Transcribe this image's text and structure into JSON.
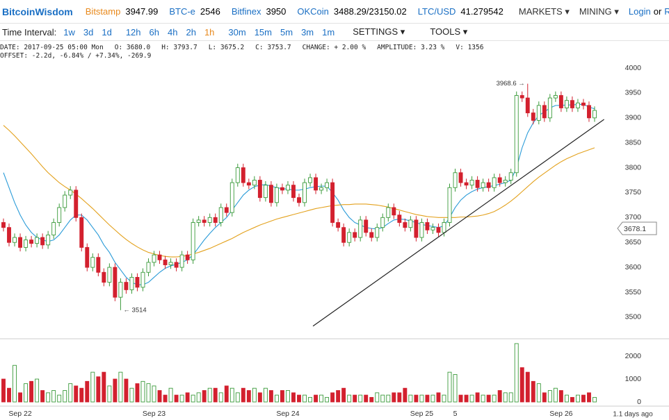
{
  "nav": {
    "brand": "BitcoinWisdom",
    "tickers": [
      {
        "name": "Bitstamp",
        "price": "3947.99"
      },
      {
        "name": "BTC-e",
        "price": "2546"
      },
      {
        "name": "Bitfinex",
        "price": "3950"
      },
      {
        "name": "OKCoin",
        "price": "3488.29/23150.02"
      },
      {
        "name": "LTC/USD",
        "price": "41.279542"
      }
    ],
    "menus": [
      "MARKETS ▾",
      "MINING ▾"
    ],
    "login": "Login",
    "or": "or",
    "register": "R"
  },
  "toolbar": {
    "label": "Time Interval:",
    "intervals": [
      "1w",
      "3d",
      "1d",
      "12h",
      "6h",
      "4h",
      "2h",
      "1h",
      "30m",
      "15m",
      "5m",
      "3m",
      "1m"
    ],
    "selected": "1h",
    "settings": "SETTINGS ▾",
    "tools": "TOOLS ▾"
  },
  "info": {
    "line1": [
      "DATE: 2017-09-25 05:00 Mon",
      "O: 3680.0",
      "H: 3793.7",
      "L: 3675.2",
      "C: 3753.7",
      "CHANGE: + 2.00 %",
      "AMPLITUDE: 3.23 %",
      "V: 1356"
    ],
    "line2": "OFFSET: -2.2d, -6.84% / +7.34%, -269.9"
  },
  "chart_data": [
    {
      "type": "candlestick",
      "up_color": "#3a9a3a",
      "down_color": "#d3202e",
      "categories": [
        null,
        null,
        null,
        "Sep 22",
        null,
        null,
        null,
        null,
        null,
        null,
        null,
        null,
        null,
        null,
        null,
        null,
        null,
        null,
        null,
        null,
        null,
        null,
        null,
        null,
        null,
        null,
        null,
        "Sep 23",
        null,
        null,
        null,
        null,
        null,
        null,
        null,
        null,
        null,
        null,
        null,
        null,
        null,
        null,
        null,
        null,
        null,
        null,
        null,
        null,
        null,
        null,
        null,
        "Sep 24",
        null,
        null,
        null,
        null,
        null,
        null,
        null,
        null,
        null,
        null,
        null,
        null,
        null,
        null,
        null,
        null,
        null,
        null,
        null,
        null,
        null,
        null,
        null,
        "Sep 25",
        null,
        null,
        null,
        null,
        null,
        "5",
        null,
        null,
        null,
        null,
        null,
        null,
        null,
        null,
        null,
        null,
        null,
        null,
        null,
        null,
        null,
        null,
        null,
        null,
        "Sep 26",
        null,
        null,
        null,
        null,
        null,
        null
      ],
      "open": [
        3690,
        3680,
        3650,
        3660,
        3640,
        3655,
        3648,
        3660,
        3645,
        3665,
        3690,
        3720,
        3745,
        3755,
        3700,
        3640,
        3600,
        3620,
        3590,
        3570,
        3600,
        3540,
        3570,
        3555,
        3580,
        3560,
        3590,
        3610,
        3625,
        3615,
        3605,
        3610,
        3600,
        3625,
        3615,
        3690,
        3695,
        3690,
        3700,
        3690,
        3720,
        3710,
        3770,
        3800,
        3770,
        3765,
        3775,
        3740,
        3765,
        3730,
        3760,
        3755,
        3765,
        3740,
        3730,
        3770,
        3780,
        3755,
        3760,
        3770,
        3690,
        3680,
        3650,
        3670,
        3660,
        3695,
        3670,
        3660,
        3680,
        3700,
        3720,
        3705,
        3690,
        3680,
        3695,
        3660,
        3690,
        3675,
        3680,
        3670,
        3690,
        3760,
        3790,
        3770,
        3765,
        3775,
        3760,
        3770,
        3760,
        3780,
        3770,
        3775,
        3790,
        3945,
        3940,
        3910,
        3895,
        3925,
        3900,
        3940,
        3945,
        3920,
        3935,
        3920,
        3930,
        3925,
        3900
      ],
      "high": [
        3698,
        3688,
        3668,
        3668,
        3663,
        3663,
        3668,
        3668,
        3673,
        3698,
        3728,
        3753,
        3763,
        3763,
        3708,
        3648,
        3628,
        3628,
        3598,
        3608,
        3608,
        3578,
        3578,
        3588,
        3588,
        3598,
        3618,
        3633,
        3633,
        3623,
        3618,
        3618,
        3633,
        3633,
        3698,
        3703,
        3703,
        3708,
        3708,
        3728,
        3728,
        3778,
        3808,
        3808,
        3778,
        3783,
        3783,
        3773,
        3773,
        3768,
        3768,
        3773,
        3773,
        3748,
        3778,
        3788,
        3788,
        3768,
        3778,
        3778,
        3698,
        3688,
        3678,
        3678,
        3703,
        3703,
        3678,
        3688,
        3708,
        3728,
        3728,
        3713,
        3698,
        3703,
        3703,
        3698,
        3698,
        3688,
        3688,
        3698,
        3768,
        3798,
        3798,
        3778,
        3783,
        3783,
        3778,
        3778,
        3788,
        3788,
        3783,
        3798,
        3953,
        3953,
        3968.6,
        3918,
        3933,
        3933,
        3948,
        3953,
        3953,
        3943,
        3943,
        3938,
        3938,
        3933,
        3923
      ],
      "low": [
        3672,
        3642,
        3642,
        3632,
        3632,
        3640,
        3640,
        3637,
        3637,
        3657,
        3682,
        3712,
        3737,
        3692,
        3632,
        3592,
        3592,
        3582,
        3562,
        3562,
        3532,
        3514,
        3547,
        3547,
        3552,
        3552,
        3582,
        3602,
        3607,
        3597,
        3597,
        3592,
        3592,
        3607,
        3607,
        3682,
        3682,
        3682,
        3682,
        3682,
        3702,
        3702,
        3762,
        3762,
        3757,
        3757,
        3732,
        3732,
        3722,
        3722,
        3747,
        3747,
        3732,
        3722,
        3722,
        3762,
        3747,
        3747,
        3752,
        3682,
        3672,
        3642,
        3642,
        3652,
        3652,
        3662,
        3652,
        3652,
        3672,
        3692,
        3697,
        3682,
        3672,
        3672,
        3652,
        3652,
        3667,
        3667,
        3662,
        3662,
        3682,
        3752,
        3762,
        3757,
        3757,
        3752,
        3752,
        3752,
        3752,
        3762,
        3762,
        3767,
        3782,
        3932,
        3902,
        3887,
        3887,
        3892,
        3892,
        3932,
        3912,
        3912,
        3912,
        3912,
        3917,
        3892,
        3892
      ],
      "close": [
        3680,
        3650,
        3660,
        3640,
        3655,
        3648,
        3660,
        3645,
        3665,
        3690,
        3720,
        3745,
        3755,
        3700,
        3640,
        3600,
        3620,
        3590,
        3570,
        3600,
        3540,
        3570,
        3555,
        3580,
        3560,
        3590,
        3610,
        3625,
        3615,
        3605,
        3610,
        3600,
        3625,
        3615,
        3690,
        3695,
        3690,
        3700,
        3690,
        3720,
        3710,
        3770,
        3800,
        3770,
        3765,
        3775,
        3740,
        3765,
        3730,
        3760,
        3755,
        3765,
        3740,
        3730,
        3770,
        3780,
        3755,
        3760,
        3770,
        3690,
        3680,
        3650,
        3670,
        3660,
        3695,
        3670,
        3660,
        3680,
        3700,
        3720,
        3705,
        3690,
        3680,
        3695,
        3660,
        3690,
        3675,
        3680,
        3670,
        3690,
        3760,
        3790,
        3770,
        3765,
        3775,
        3760,
        3770,
        3760,
        3780,
        3770,
        3775,
        3790,
        3945,
        3940,
        3910,
        3895,
        3925,
        3900,
        3940,
        3945,
        3920,
        3935,
        3920,
        3930,
        3925,
        3900,
        3915
      ],
      "series": [
        {
          "color": "#2a9bd8",
          "values": [
            3790,
            3760,
            3730,
            3705,
            3685,
            3670,
            3660,
            3655,
            3652,
            3655,
            3665,
            3680,
            3695,
            3705,
            3705,
            3695,
            3680,
            3665,
            3645,
            3630,
            3610,
            3595,
            3580,
            3570,
            3565,
            3565,
            3570,
            3580,
            3590,
            3598,
            3603,
            3606,
            3610,
            3615,
            3625,
            3640,
            3655,
            3668,
            3680,
            3690,
            3700,
            3715,
            3730,
            3745,
            3755,
            3762,
            3765,
            3766,
            3763,
            3760,
            3758,
            3757,
            3755,
            3755,
            3757,
            3760,
            3762,
            3763,
            3763,
            3750,
            3735,
            3715,
            3700,
            3690,
            3685,
            3680,
            3678,
            3677,
            3680,
            3688,
            3695,
            3697,
            3696,
            3693,
            3690,
            3686,
            3684,
            3682,
            3680,
            3683,
            3700,
            3720,
            3735,
            3745,
            3752,
            3757,
            3760,
            3762,
            3764,
            3767,
            3770,
            3775,
            3800,
            3840,
            3870,
            3890,
            3905,
            3912,
            3920,
            3925,
            3925,
            3926,
            3926,
            3927,
            3927,
            3922,
            3918
          ]
        },
        {
          "color": "#e3a11c",
          "values": [
            3885,
            3875,
            3864,
            3852,
            3840,
            3828,
            3815,
            3802,
            3790,
            3780,
            3770,
            3762,
            3755,
            3747,
            3738,
            3728,
            3718,
            3707,
            3696,
            3685,
            3675,
            3665,
            3656,
            3648,
            3641,
            3635,
            3630,
            3627,
            3624,
            3622,
            3621,
            3621,
            3622,
            3624,
            3627,
            3630,
            3634,
            3638,
            3643,
            3648,
            3653,
            3658,
            3664,
            3670,
            3675,
            3680,
            3685,
            3689,
            3693,
            3697,
            3700,
            3703,
            3706,
            3709,
            3712,
            3715,
            3718,
            3720,
            3722,
            3724,
            3725,
            3726,
            3726,
            3727,
            3727,
            3727,
            3726,
            3725,
            3723,
            3721,
            3718,
            3715,
            3712,
            3709,
            3706,
            3704,
            3702,
            3701,
            3700,
            3700,
            3700,
            3700,
            3701,
            3701,
            3702,
            3703,
            3705,
            3708,
            3712,
            3718,
            3725,
            3733,
            3742,
            3752,
            3762,
            3772,
            3781,
            3789,
            3797,
            3805,
            3812,
            3818,
            3823,
            3828,
            3832,
            3836,
            3840
          ]
        }
      ],
      "trend_line": {
        "x": [
          55.5,
          107.7
        ],
        "values": [
          3482,
          3897
        ],
        "color": "#222222"
      },
      "high_label": {
        "value": 3968.6,
        "label": "3968.6 →"
      },
      "low_label": {
        "value": 3514,
        "label": "← 3514"
      },
      "last_price": 3678.1,
      "ylim": [
        3458,
        4014
      ],
      "yticks": [
        3500,
        3550,
        3600,
        3650,
        3700,
        3750,
        3800,
        3850,
        3900,
        3950,
        4000
      ],
      "time_note": "1.1 days ago"
    },
    {
      "type": "volume",
      "values": [
        1000,
        600,
        1600,
        400,
        800,
        900,
        1000,
        500,
        400,
        500,
        300,
        500,
        800,
        700,
        600,
        900,
        1300,
        1100,
        1300,
        700,
        1000,
        1300,
        1000,
        600,
        800,
        900,
        800,
        700,
        500,
        300,
        600,
        300,
        300,
        400,
        300,
        400,
        500,
        600,
        600,
        400,
        700,
        600,
        400,
        600,
        500,
        600,
        400,
        600,
        500,
        300,
        500,
        500,
        400,
        300,
        300,
        200,
        300,
        300,
        200,
        400,
        500,
        600,
        300,
        300,
        300,
        300,
        200,
        400,
        300,
        300,
        400,
        400,
        600,
        300,
        300,
        300,
        300,
        300,
        400,
        300,
        1300,
        1200,
        300,
        300,
        300,
        400,
        300,
        300,
        300,
        500,
        400,
        400,
        2550,
        1500,
        1300,
        900,
        800,
        400,
        500,
        600,
        500,
        300,
        200,
        300,
        300,
        400,
        200
      ],
      "ylim": [
        0,
        2700
      ],
      "yticks": [
        0,
        1000,
        2000
      ]
    }
  ]
}
